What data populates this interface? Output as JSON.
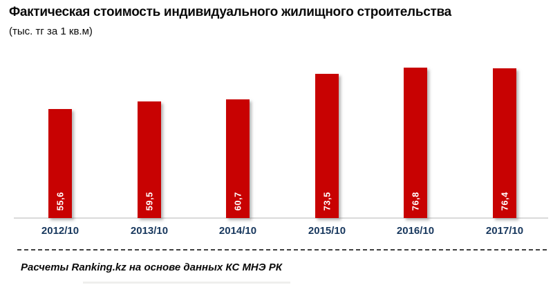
{
  "header": {
    "title": "Фактическая стоимость индивидуального жилищного строительства",
    "subtitle": "(тыс. тг за 1 кв.м)"
  },
  "chart_data": {
    "type": "bar",
    "title": "Фактическая стоимость индивидуального жилищного строительства",
    "subtitle": "(тыс. тг за 1 кв.м)",
    "categories": [
      "2012/10",
      "2013/10",
      "2014/10",
      "2015/10",
      "2016/10",
      "2017/10"
    ],
    "values": [
      55.6,
      59.5,
      60.7,
      73.5,
      76.8,
      76.4
    ],
    "value_labels": [
      "55,6",
      "59,5",
      "60,7",
      "73,5",
      "76,8",
      "76,4"
    ],
    "xlabel": "",
    "ylabel": "",
    "ylim": [
      0,
      80
    ],
    "grid": false,
    "legend": false,
    "value_labels_position": "inside-bottom-rotated",
    "bar_color": "#C80202",
    "value_label_color": "#FFFFFF",
    "category_label_color": "#17375D",
    "axis_line_color": "#D9D9D9"
  },
  "footer": {
    "source_note": "Расчеты Ranking.kz на основе данных КС МНЭ РК"
  }
}
